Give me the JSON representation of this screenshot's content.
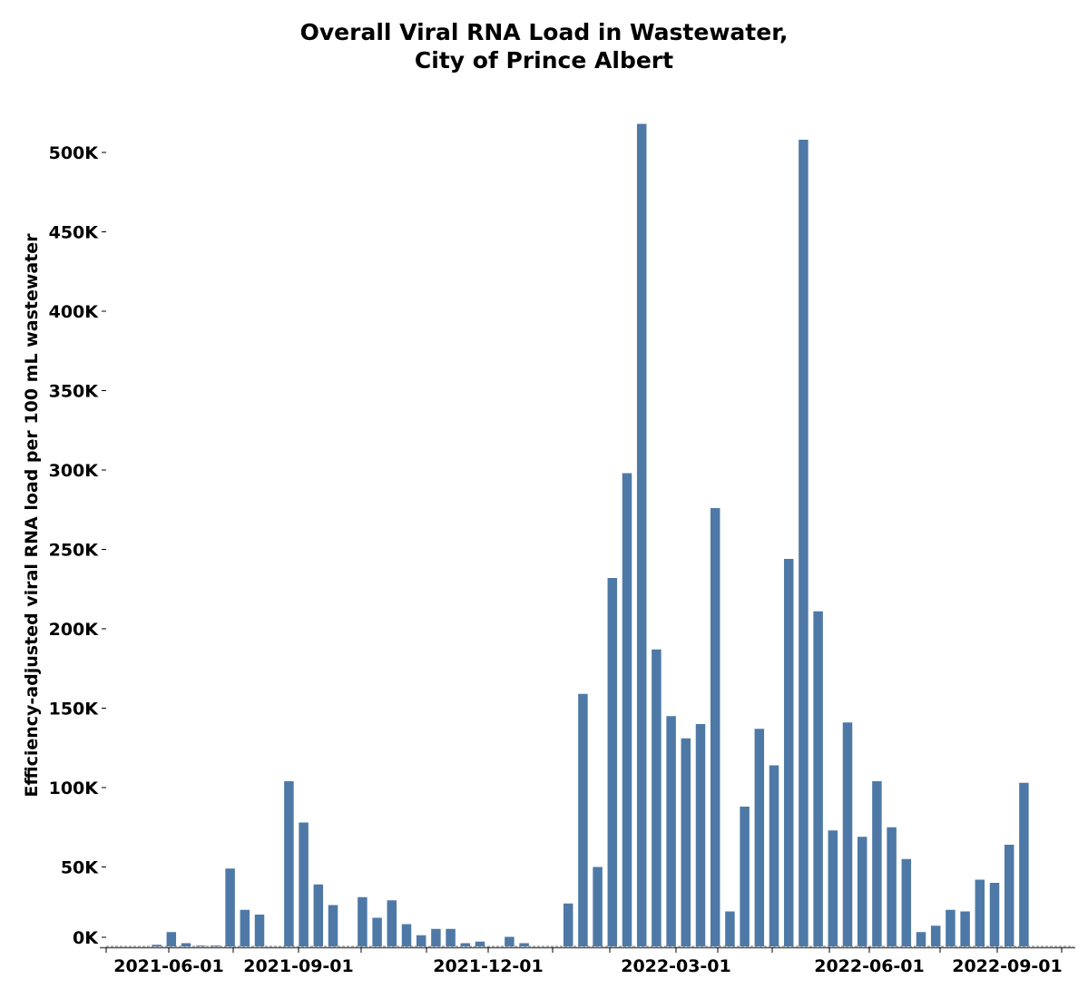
{
  "chart_data": {
    "type": "bar",
    "title_line1": "Overall Viral RNA Load in Wastewater,",
    "title_line2": "City of Prince Albert",
    "xlabel": "",
    "ylabel": "Efficiency-adjusted viral RNA load per 100 mL wastewater",
    "ylim": [
      0,
      520000
    ],
    "y_ticks": [
      {
        "value": 0,
        "label": "0K"
      },
      {
        "value": 50000,
        "label": "50K"
      },
      {
        "value": 100000,
        "label": "100K"
      },
      {
        "value": 150000,
        "label": "150K"
      },
      {
        "value": 200000,
        "label": "200K"
      },
      {
        "value": 250000,
        "label": "250K"
      },
      {
        "value": 300000,
        "label": "300K"
      },
      {
        "value": 350000,
        "label": "350K"
      },
      {
        "value": 400000,
        "label": "400K"
      },
      {
        "value": 450000,
        "label": "450K"
      },
      {
        "value": 500000,
        "label": "500K"
      }
    ],
    "x_tick_labels": [
      "2021-06-01",
      "2021-09-01",
      "2021-12-01",
      "2022-03-01",
      "2022-06-01",
      "2022-09-01"
    ],
    "grid": false,
    "bar_color": "#4e79a7",
    "values": [
      0,
      0,
      0,
      1000,
      9000,
      2000,
      500,
      500,
      49000,
      23000,
      20000,
      0,
      104000,
      78000,
      39000,
      26000,
      0,
      31000,
      18000,
      29000,
      14000,
      7000,
      11000,
      11000,
      2000,
      3000,
      0,
      6000,
      2000,
      0,
      0,
      27000,
      159000,
      50000,
      232000,
      298000,
      518000,
      187000,
      145000,
      131000,
      140000,
      276000,
      22000,
      88000,
      137000,
      114000,
      244000,
      508000,
      211000,
      73000,
      141000,
      69000,
      104000,
      75000,
      55000,
      9000,
      13000,
      23000,
      22000,
      42000,
      40000,
      64000,
      103000,
      0,
      0,
      0
    ]
  }
}
